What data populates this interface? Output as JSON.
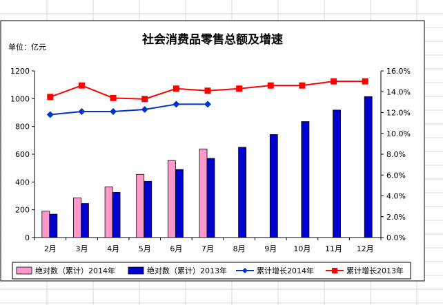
{
  "chart_data": {
    "type": "bar",
    "title": "社会消费品零售总额及增速",
    "unit_label": "单位：亿元",
    "categories": [
      "2月",
      "3月",
      "4月",
      "5月",
      "6月",
      "7月",
      "8月",
      "9月",
      "10月",
      "11月",
      "12月"
    ],
    "y_left": {
      "min": 0,
      "max": 1200,
      "ticks": [
        "0",
        "200",
        "400",
        "600",
        "800",
        "1000",
        "1200"
      ]
    },
    "y_right": {
      "min": 0,
      "max": 16,
      "ticks": [
        "0.0%",
        "2.0%",
        "4.0%",
        "6.0%",
        "8.0%",
        "10.0%",
        "12.0%",
        "14.0%",
        "16.0%"
      ]
    },
    "series": [
      {
        "name": "绝对数（累计）2014年",
        "kind": "bar",
        "color": "#ff99cc",
        "values": [
          190,
          285,
          365,
          455,
          555,
          638,
          null,
          null,
          null,
          null,
          null
        ]
      },
      {
        "name": "绝对数（累计）2013年",
        "kind": "bar",
        "color": "#0000cc",
        "values": [
          168,
          245,
          325,
          405,
          490,
          570,
          650,
          742,
          835,
          918,
          1015
        ]
      },
      {
        "name": "累计增长2014年",
        "kind": "line",
        "color": "#0033cc",
        "marker": "diamond",
        "axis": "right",
        "values": [
          11.8,
          12.1,
          12.1,
          12.3,
          12.8,
          12.8,
          null,
          null,
          null,
          null,
          null
        ]
      },
      {
        "name": "累计增长2013年",
        "kind": "line",
        "color": "#ff0000",
        "marker": "square",
        "axis": "right",
        "values": [
          13.5,
          14.6,
          13.4,
          13.3,
          14.3,
          14.1,
          14.3,
          14.6,
          14.6,
          15.0,
          15.0
        ]
      }
    ],
    "legend_position": "bottom",
    "grid": false
  }
}
